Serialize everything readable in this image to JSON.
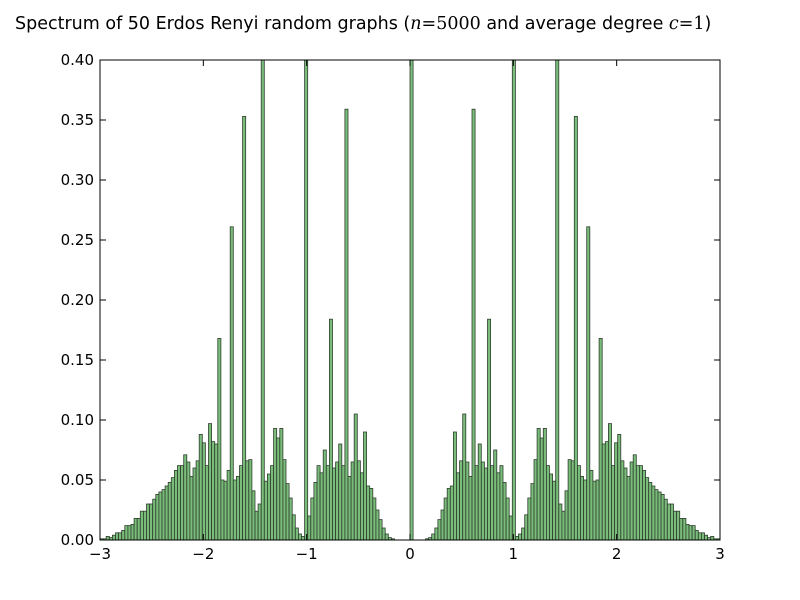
{
  "chart_data": {
    "type": "bar",
    "title": {
      "prefix": "Spectrum of 50 Erdos Renyi random graphs (",
      "n_var": "n",
      "n_eq": "=",
      "n_val": "5000",
      "middle": " and average degree ",
      "c_var": "c",
      "c_eq": "=",
      "c_val": "1",
      "suffix": ")"
    },
    "xlabel": "",
    "ylabel": "",
    "xlim": [
      -3,
      3
    ],
    "ylim": [
      0,
      0.4
    ],
    "bin_start": -3,
    "bin_width": 0.03,
    "x_ticks": [
      "−3",
      "−2",
      "−1",
      "0",
      "1",
      "2",
      "3"
    ],
    "x_tick_values": [
      -3,
      -2,
      -1,
      0,
      1,
      2,
      3
    ],
    "y_ticks": [
      "0.00",
      "0.05",
      "0.10",
      "0.15",
      "0.20",
      "0.25",
      "0.30",
      "0.35",
      "0.40"
    ],
    "y_tick_values": [
      0,
      0.05,
      0.1,
      0.15,
      0.2,
      0.25,
      0.3,
      0.35,
      0.4
    ],
    "grid": false,
    "bar_color": "#6cb56c",
    "edge_color": "#2f3f2f",
    "values": [
      0.001,
      0.001,
      0.003,
      0.002,
      0.004,
      0.006,
      0.006,
      0.008,
      0.012,
      0.012,
      0.013,
      0.018,
      0.018,
      0.024,
      0.024,
      0.03,
      0.03,
      0.034,
      0.038,
      0.04,
      0.042,
      0.045,
      0.048,
      0.052,
      0.058,
      0.062,
      0.062,
      0.071,
      0.065,
      0.053,
      0.06,
      0.066,
      0.088,
      0.081,
      0.062,
      0.097,
      0.082,
      0.08,
      0.168,
      0.05,
      0.049,
      0.058,
      0.261,
      0.05,
      0.053,
      0.062,
      0.353,
      0.066,
      0.067,
      0.041,
      0.024,
      0.03,
      0.45,
      0.049,
      0.055,
      0.062,
      0.093,
      0.085,
      0.093,
      0.067,
      0.047,
      0.035,
      0.021,
      0.01,
      0.005,
      0.003,
      0.45,
      0.02,
      0.035,
      0.048,
      0.062,
      0.056,
      0.075,
      0.062,
      0.184,
      0.06,
      0.065,
      0.08,
      0.062,
      0.359,
      0.053,
      0.065,
      0.105,
      0.066,
      0.056,
      0.09,
      0.045,
      0.043,
      0.035,
      0.025,
      0.017,
      0.01,
      0.005,
      0.002,
      0.001,
      0,
      0,
      0,
      0,
      0,
      0.45,
      0,
      0,
      0,
      0,
      0.001,
      0.002,
      0.005,
      0.01,
      0.017,
      0.025,
      0.035,
      0.043,
      0.045,
      0.09,
      0.056,
      0.066,
      0.105,
      0.065,
      0.053,
      0.359,
      0.062,
      0.08,
      0.065,
      0.06,
      0.184,
      0.062,
      0.075,
      0.056,
      0.062,
      0.048,
      0.035,
      0.02,
      0.45,
      0.003,
      0.005,
      0.01,
      0.021,
      0.035,
      0.047,
      0.067,
      0.093,
      0.085,
      0.093,
      0.062,
      0.055,
      0.049,
      0.45,
      0.03,
      0.024,
      0.041,
      0.067,
      0.066,
      0.353,
      0.062,
      0.053,
      0.05,
      0.261,
      0.058,
      0.049,
      0.05,
      0.168,
      0.08,
      0.082,
      0.097,
      0.062,
      0.081,
      0.088,
      0.066,
      0.06,
      0.053,
      0.065,
      0.071,
      0.062,
      0.062,
      0.058,
      0.052,
      0.048,
      0.045,
      0.042,
      0.04,
      0.038,
      0.034,
      0.03,
      0.03,
      0.024,
      0.024,
      0.018,
      0.018,
      0.013,
      0.012,
      0.012,
      0.008,
      0.006,
      0.006,
      0.004,
      0.002,
      0.003,
      0.001,
      0.001
    ]
  }
}
